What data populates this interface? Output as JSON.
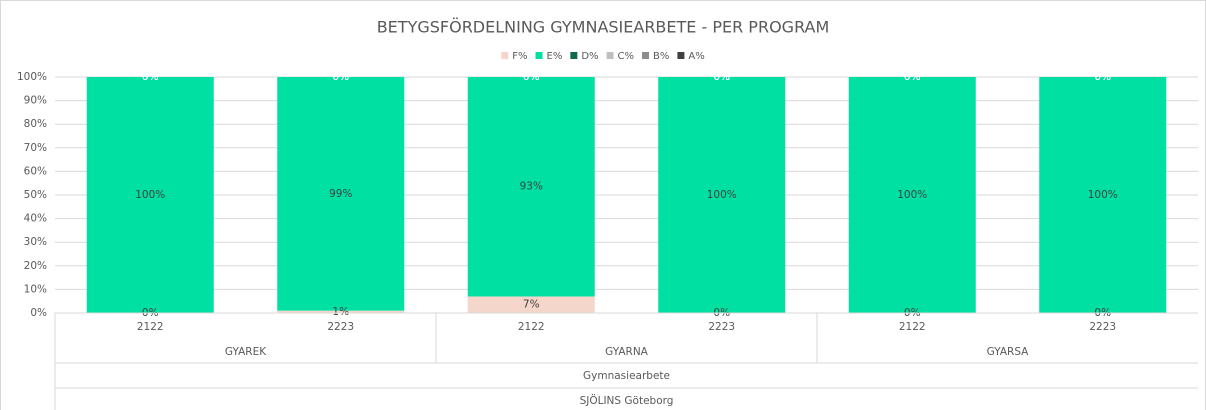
{
  "chart_data": {
    "type": "stacked_bar",
    "title": "BETYGSFÖRDELNING GYMNASIEARBETE - PER PROGRAM",
    "categories": [
      "2122",
      "2223",
      "2122",
      "2223",
      "2122",
      "2223"
    ],
    "group_labels": [
      "GYAREK",
      "GYARNA",
      "GYARSA"
    ],
    "outer_labels": [
      "Gymnasiearbete",
      "SJÖLINS Göteborg"
    ],
    "series": [
      {
        "name": "F%",
        "color": "#f4d6ca",
        "label_color": "#404040",
        "values": [
          0,
          1,
          7,
          0,
          0,
          0
        ],
        "value_labels": [
          "0%",
          "1%",
          "7%",
          "0%",
          "0%",
          "0%"
        ]
      },
      {
        "name": "E%",
        "color": "#00e0a2",
        "label_color": "#404040",
        "values": [
          100,
          99,
          93,
          100,
          100,
          100
        ],
        "value_labels": [
          "100%",
          "99%",
          "93%",
          "100%",
          "100%",
          "100%"
        ]
      },
      {
        "name": "D%",
        "color": "#0d6b4b",
        "label_color": "#ffffff",
        "values": [
          0,
          0,
          0,
          0,
          0,
          0
        ],
        "value_labels": [
          "0%",
          "0%",
          "0%",
          "0%",
          "0%",
          "0%"
        ]
      },
      {
        "name": "C%",
        "color": "#bfbfbf",
        "label_color": "#ffffff",
        "values": [
          0,
          0,
          0,
          0,
          0,
          0
        ],
        "value_labels": [
          "0%",
          "0%",
          "0%",
          "0%",
          "0%",
          "0%"
        ]
      },
      {
        "name": "B%",
        "color": "#8c8c8c",
        "label_color": "#ffffff",
        "values": [
          0,
          0,
          0,
          0,
          0,
          0
        ],
        "value_labels": [
          "0%",
          "0%",
          "0%",
          "0%",
          "0%",
          "0%"
        ]
      },
      {
        "name": "A%",
        "color": "#404040",
        "label_color": "#ffffff",
        "values": [
          0,
          0,
          0,
          0,
          0,
          0
        ],
        "value_labels": [
          "0%",
          "0%",
          "0%",
          "0%",
          "0%",
          "0%"
        ]
      }
    ],
    "ylim": [
      0,
      100
    ],
    "yticks": [
      {
        "value": 0,
        "label": "0%"
      },
      {
        "value": 10,
        "label": "10%"
      },
      {
        "value": 20,
        "label": "20%"
      },
      {
        "value": 30,
        "label": "30%"
      },
      {
        "value": 40,
        "label": "40%"
      },
      {
        "value": 50,
        "label": "50%"
      },
      {
        "value": 60,
        "label": "60%"
      },
      {
        "value": 70,
        "label": "70%"
      },
      {
        "value": 80,
        "label": "80%"
      },
      {
        "value": 90,
        "label": "90%"
      },
      {
        "value": 100,
        "label": "100%"
      }
    ],
    "grid": true,
    "legend": "top"
  }
}
